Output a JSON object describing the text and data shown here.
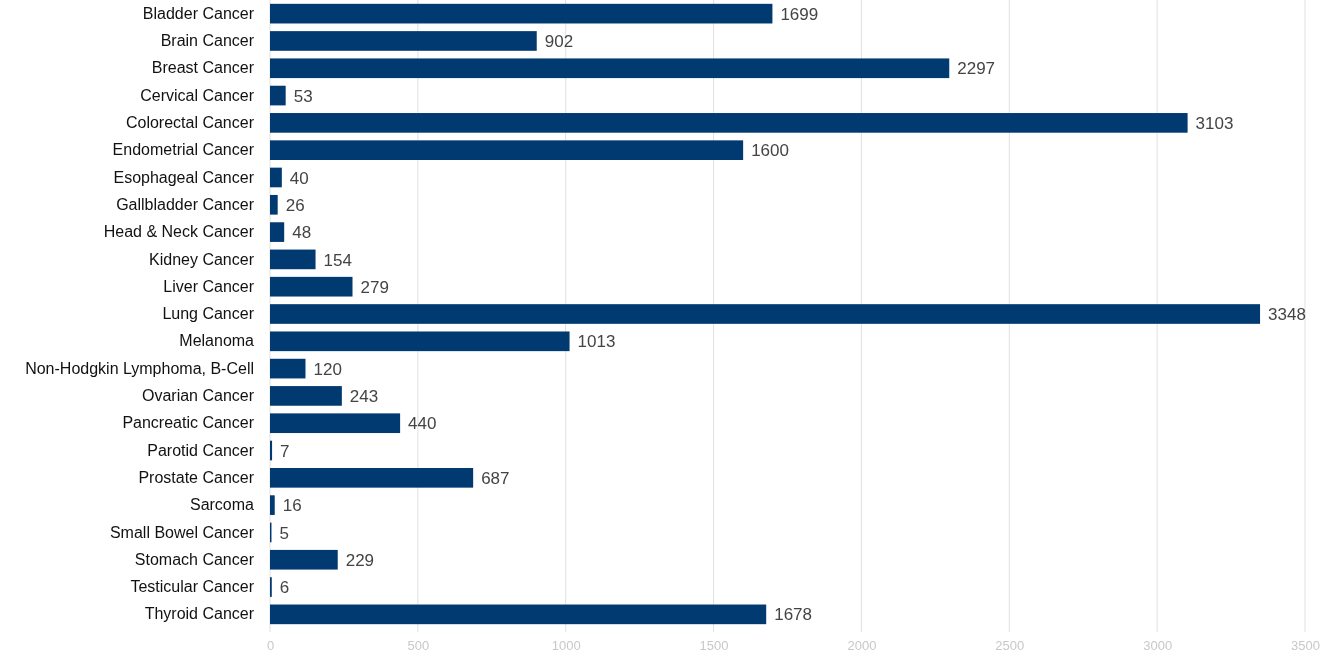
{
  "chart_data": {
    "type": "bar",
    "orientation": "horizontal",
    "categories": [
      "Bladder Cancer",
      "Brain Cancer",
      "Breast Cancer",
      "Cervical Cancer",
      "Colorectal Cancer",
      "Endometrial Cancer",
      "Esophageal Cancer",
      "Gallbladder Cancer",
      "Head & Neck Cancer",
      "Kidney Cancer",
      "Liver Cancer",
      "Lung Cancer",
      "Melanoma",
      "Non-Hodgkin Lymphoma, B-Cell",
      "Ovarian Cancer",
      "Pancreatic Cancer",
      "Parotid Cancer",
      "Prostate Cancer",
      "Sarcoma",
      "Small Bowel Cancer",
      "Stomach Cancer",
      "Testicular Cancer",
      "Thyroid Cancer"
    ],
    "values": [
      1699,
      902,
      2297,
      53,
      3103,
      1600,
      40,
      26,
      48,
      154,
      279,
      3348,
      1013,
      120,
      243,
      440,
      7,
      687,
      16,
      5,
      229,
      6,
      1678
    ],
    "color": "#003a70",
    "data_labels": true,
    "grid": "x",
    "xlim": [
      0,
      3500
    ],
    "xticks": [
      0,
      500,
      1000,
      1500,
      2000,
      2500,
      3000,
      3500
    ]
  }
}
